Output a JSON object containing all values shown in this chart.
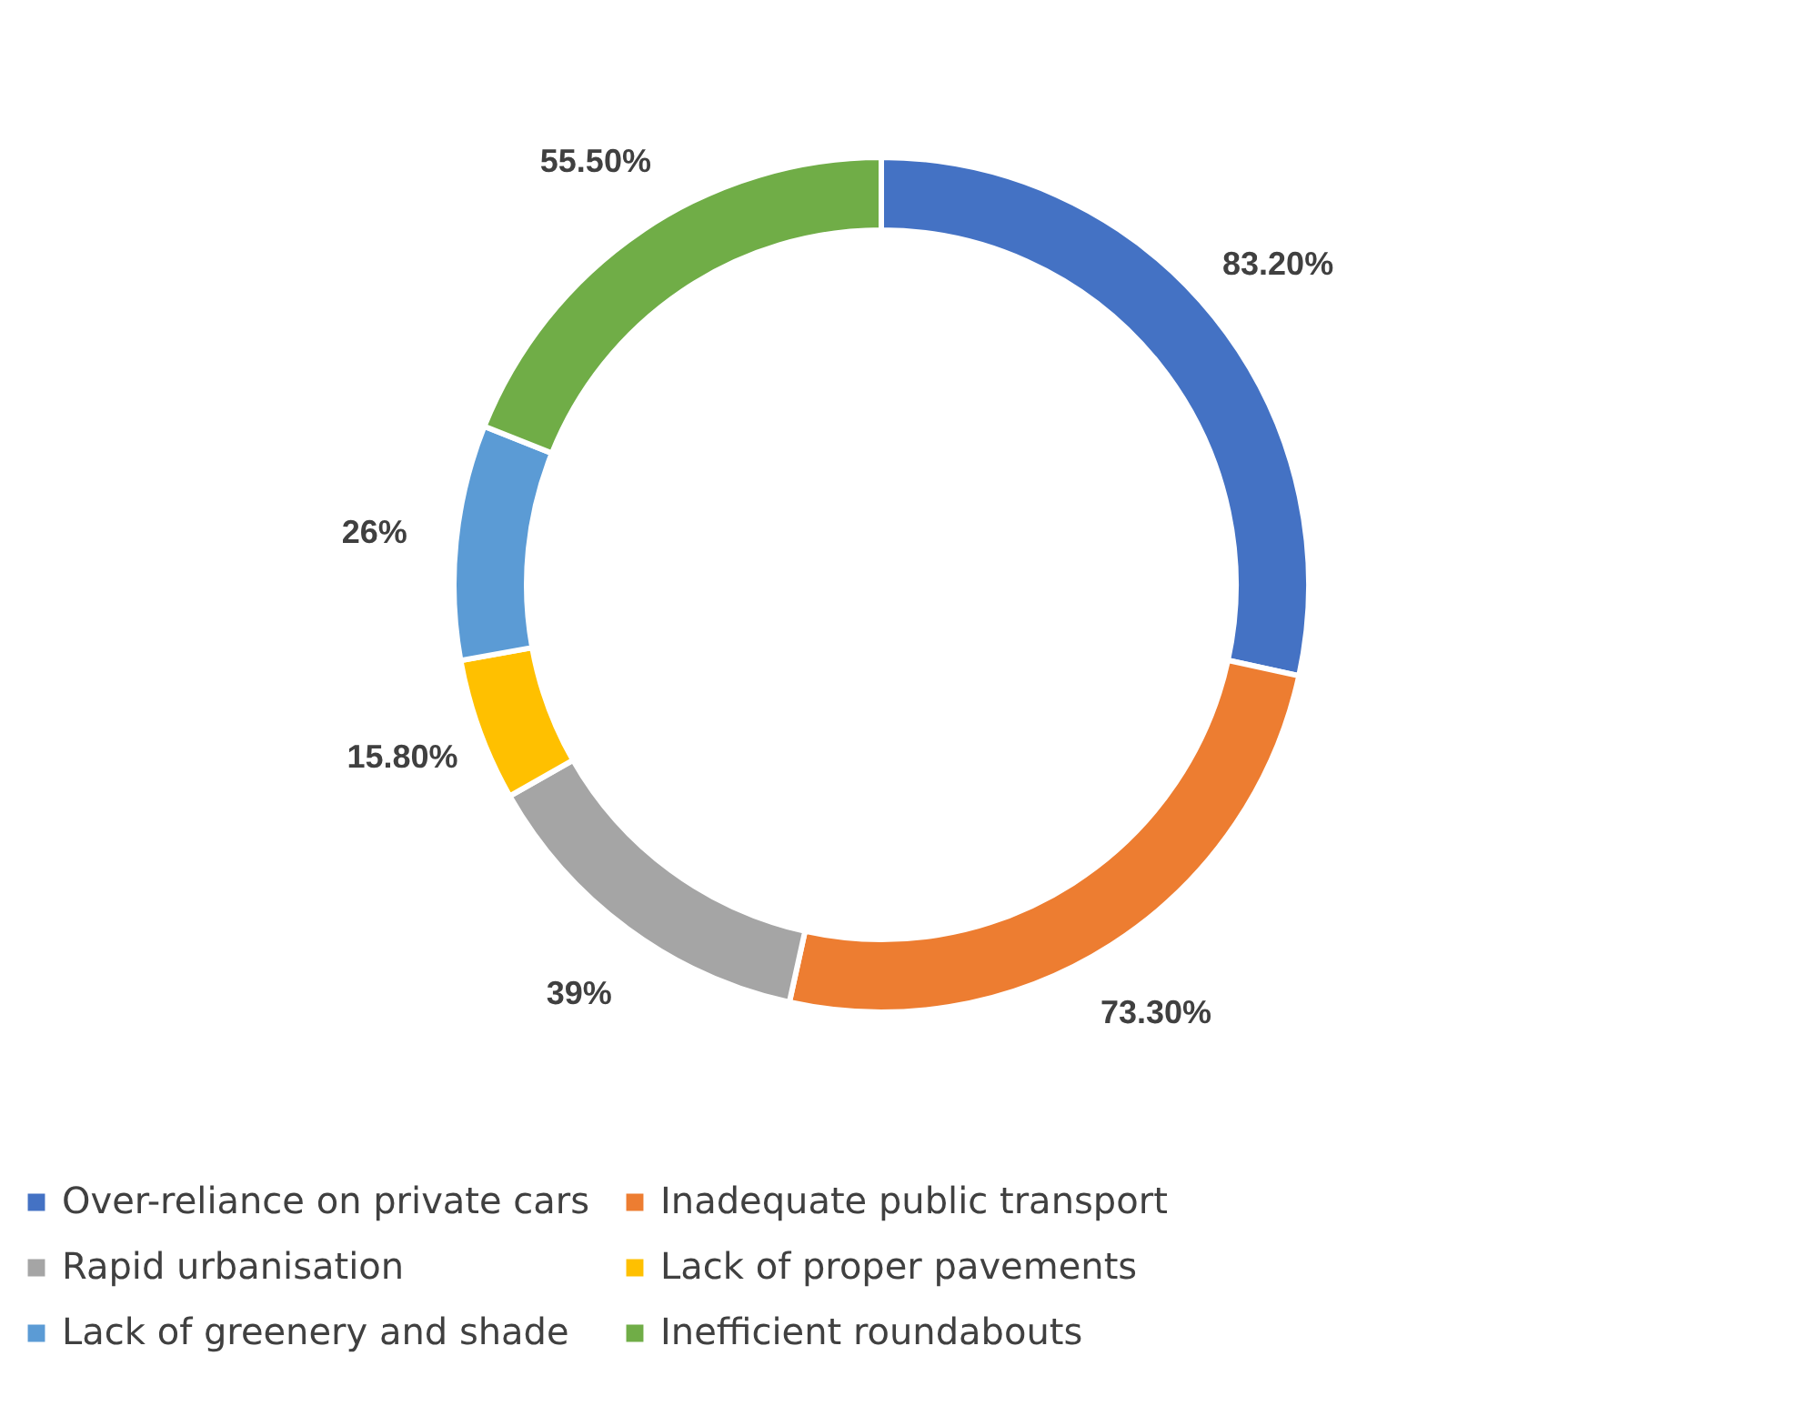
{
  "chart_data": {
    "type": "donut",
    "categories": [
      "Over-reliance on private cars",
      "Inadequate public transport",
      "Rapid urbanisation",
      "Lack of proper pavements",
      "Lack of greenery and shade",
      "Inefficient roundabouts"
    ],
    "values": [
      83.2,
      73.3,
      39,
      15.8,
      26,
      55.5
    ],
    "colors": [
      "#4472c4",
      "#ed7d31",
      "#a5a5a5",
      "#ffc000",
      "#5b9bd5",
      "#70ad47"
    ],
    "value_labels": [
      "83.20%",
      "73.30%",
      "39%",
      "15.80%",
      "26%",
      "55.50%"
    ],
    "legend": "bottom"
  }
}
